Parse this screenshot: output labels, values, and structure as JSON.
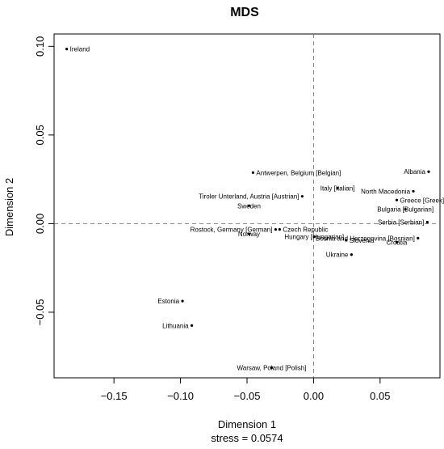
{
  "chart_data": {
    "type": "scatter",
    "title": "MDS",
    "xlabel": "Dimension 1",
    "ylabel": "Dimension 2",
    "subtitle": "stress = 0.0574",
    "xlim": [
      -0.195,
      0.095
    ],
    "ylim": [
      -0.087,
      0.107
    ],
    "xticks": [
      {
        "value": -0.15,
        "label": "−0.15"
      },
      {
        "value": -0.1,
        "label": "−0.10"
      },
      {
        "value": -0.05,
        "label": "−0.05"
      },
      {
        "value": 0.0,
        "label": "0.00"
      },
      {
        "value": 0.05,
        "label": "0.05"
      }
    ],
    "yticks": [
      {
        "value": -0.05,
        "label": "−0.05"
      },
      {
        "value": 0.0,
        "label": "0.00"
      },
      {
        "value": 0.05,
        "label": "0.05"
      },
      {
        "value": 0.1,
        "label": "0.10"
      }
    ],
    "reference_lines": {
      "x": 0,
      "y": 0,
      "style": "dashed"
    },
    "points": [
      {
        "label": "Ireland",
        "x": -0.1855,
        "y": 0.0985,
        "anchor": "start"
      },
      {
        "label": "Antwerpen, Belgium [Belgian]",
        "x": -0.0455,
        "y": 0.0288,
        "anchor": "start"
      },
      {
        "label": "Albania",
        "x": 0.0865,
        "y": 0.0293,
        "anchor": "end"
      },
      {
        "label": "Italy [Italian]",
        "x": 0.018,
        "y": 0.02,
        "anchor": "middle"
      },
      {
        "label": "North Macedonia",
        "x": 0.075,
        "y": 0.0183,
        "anchor": "end"
      },
      {
        "label": "Tiroler Unterland, Austria [Austrian]",
        "x": -0.0085,
        "y": 0.0154,
        "anchor": "end"
      },
      {
        "label": "Greece [Greek]",
        "x": 0.0625,
        "y": 0.0133,
        "anchor": "start"
      },
      {
        "label": "Sweden",
        "x": -0.0485,
        "y": 0.0101,
        "anchor": "middle"
      },
      {
        "label": "Bulgaria [Bulgarian]",
        "x": 0.069,
        "y": 0.0081,
        "anchor": "middle"
      },
      {
        "label": "Serbia [Serbian]",
        "x": 0.0855,
        "y": 0.0008,
        "anchor": "end"
      },
      {
        "label": "Rostock, Germany [German]",
        "x": -0.0285,
        "y": -0.0033,
        "anchor": "end"
      },
      {
        "label": "Czech Republic",
        "x": -0.0255,
        "y": -0.0033,
        "anchor": "start"
      },
      {
        "label": "Bosnia and Herzegovina [Bosnian]",
        "x": 0.0785,
        "y": -0.0082,
        "anchor": "end"
      },
      {
        "label": "Norway",
        "x": -0.0485,
        "y": -0.0058,
        "anchor": "middle"
      },
      {
        "label": "Hungary [Hungarian]",
        "x": 0.0005,
        "y": -0.0074,
        "anchor": "middle"
      },
      {
        "label": "Slovenia",
        "x": 0.0245,
        "y": -0.0094,
        "anchor": "start"
      },
      {
        "label": "Croatia",
        "x": 0.0625,
        "y": -0.0105,
        "anchor": "middle"
      },
      {
        "label": "Ukraine",
        "x": 0.0285,
        "y": -0.0175,
        "anchor": "end"
      },
      {
        "label": "Estonia",
        "x": -0.0985,
        "y": -0.0437,
        "anchor": "end"
      },
      {
        "label": "Lithuania",
        "x": -0.0915,
        "y": -0.0575,
        "anchor": "end"
      },
      {
        "label": "Warsaw, Poland [Polish]",
        "x": -0.0315,
        "y": -0.0813,
        "anchor": "middle"
      }
    ]
  }
}
